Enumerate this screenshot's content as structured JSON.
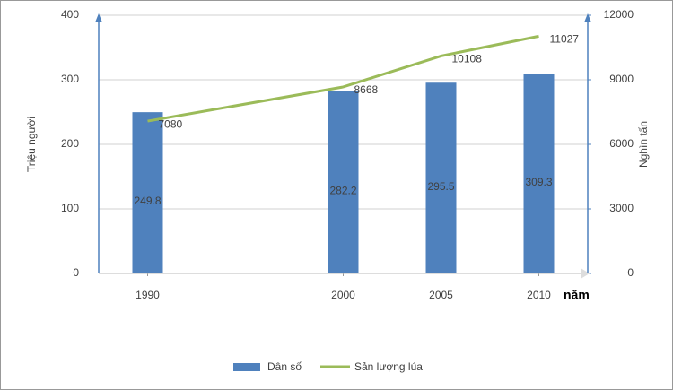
{
  "chart_data": {
    "type": "combo",
    "x": [
      1990,
      2000,
      2005,
      2010
    ],
    "xlim": [
      1987.5,
      2012.5
    ],
    "xticks": [
      1990,
      2000,
      2005,
      2010
    ],
    "x_label": "năm",
    "y_label": "Triệu người",
    "y2_label": "Nghìn tấn",
    "ylim": [
      0,
      400
    ],
    "yticks": [
      0,
      100,
      200,
      300,
      400
    ],
    "y2lim": [
      0,
      12000
    ],
    "y2ticks": [
      0,
      3000,
      6000,
      9000,
      12000
    ],
    "grid": true,
    "legend": "bottom",
    "series": [
      {
        "name": "Dân số",
        "type": "bar",
        "color": "#4f81bd",
        "values": [
          249.8,
          282.2,
          295.5,
          309.3
        ]
      },
      {
        "name": "Sản lượng lúa",
        "type": "line",
        "axis": "y2",
        "color": "#9bbb59",
        "values": [
          7080,
          8668,
          10108,
          11027
        ]
      }
    ]
  }
}
